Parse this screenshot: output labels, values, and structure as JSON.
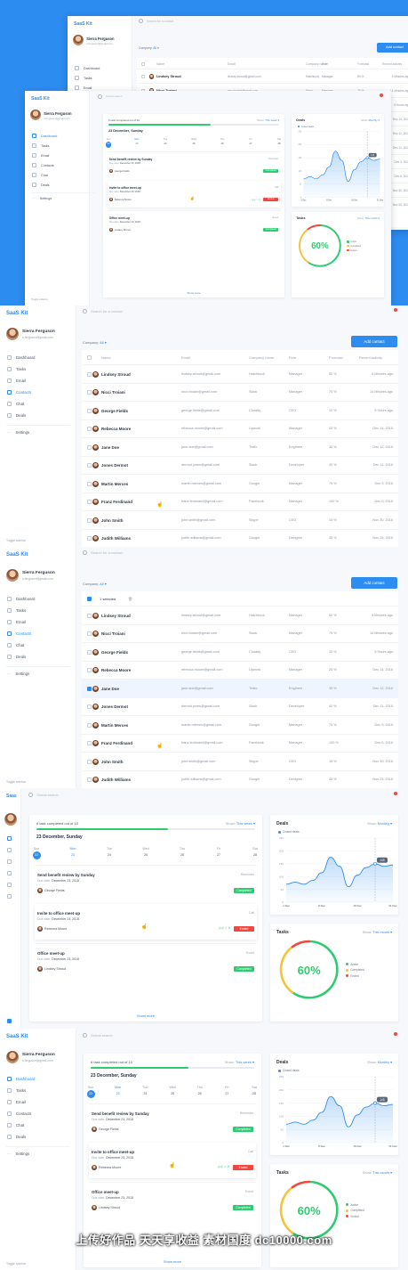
{
  "app": {
    "brand": "SaaS Kit",
    "brand_short": "Saas"
  },
  "user": {
    "name": "Sierra Ferguson",
    "email": "s.ferguson@gmail.com"
  },
  "nav": [
    "Dashboard",
    "Tasks",
    "Email",
    "Contacts",
    "Chat",
    "Deals"
  ],
  "settings_label": "Settings",
  "toggle_label": "Toggle sidebar",
  "search": {
    "contact": "Search for a contact",
    "global": "Global search"
  },
  "contacts": {
    "company_label": "Company:",
    "company_value": "All",
    "add_button": "Add contact",
    "selected_text": "1 selected",
    "headers": [
      "Name",
      "Email",
      "Company name",
      "Role",
      "Forecast",
      "Recent activity"
    ],
    "rows": [
      {
        "name": "Lindsey Stroud",
        "email": "lindsey.stroud@gmail.com",
        "company": "Hatchbuck",
        "role": "Manager",
        "forecast": "50 %",
        "activity": "5 Minutes ago"
      },
      {
        "name": "Nicci Troiani",
        "email": "nicci.troiani@gmail.com",
        "company": "Slack",
        "role": "Manager",
        "forecast": "75 %",
        "activity": "14 Minutes ago"
      },
      {
        "name": "George Fields",
        "email": "george.fields@gmail.com",
        "company": "Clockify",
        "role": "CEO",
        "forecast": "10 %",
        "activity": "5 Hours ago"
      },
      {
        "name": "Rebecca Moore",
        "email": "rebecca.moore@gmail.com",
        "company": "Upwork",
        "role": "Manager",
        "forecast": "25 %",
        "activity": "Dec 14, 2016"
      },
      {
        "name": "Jane Doe",
        "email": "jane.doe@gmail.com",
        "company": "Trello",
        "role": "Engineer",
        "forecast": "35 %",
        "activity": "Dec 12, 2016"
      },
      {
        "name": "Jones Dermot",
        "email": "dermot.jones@gmail.com",
        "company": "Slack",
        "role": "Developer",
        "forecast": "40 %",
        "activity": "Dec 11, 2016"
      },
      {
        "name": "Martin Merces",
        "email": "martin.merces@gmail.com",
        "company": "Google",
        "role": "Manager",
        "forecast": "75 %",
        "activity": "Dec 9, 2016"
      },
      {
        "name": "Franz Ferdinand",
        "email": "franz.ferdinand@gmail.com",
        "company": "Facebook",
        "role": "Manager",
        "forecast": "100 %",
        "activity": "Dec 6, 2016"
      },
      {
        "name": "John Smith",
        "email": "john.smith@gmail.com",
        "company": "Skype",
        "role": "CEO",
        "forecast": "15 %",
        "activity": "Nov 30, 2016"
      },
      {
        "name": "Judith Williams",
        "email": "judith.williams@gmail.com",
        "company": "Google",
        "role": "Designer",
        "forecast": "45 %",
        "activity": "Nov 25, 2016"
      }
    ]
  },
  "tasks_card": {
    "progress_text": "6 task completed out of 10",
    "progress": 0.6,
    "show_label": "Show:",
    "show_value": "This week",
    "date_heading": "23 December, Sunday",
    "days": [
      {
        "d": "Sun",
        "n": "22"
      },
      {
        "d": "Mon",
        "n": "23"
      },
      {
        "d": "Tue",
        "n": "24"
      },
      {
        "d": "Wed",
        "n": "25"
      },
      {
        "d": "Thu",
        "n": "26"
      },
      {
        "d": "Fri",
        "n": "27"
      },
      {
        "d": "Sat",
        "n": "28"
      }
    ],
    "tasks": [
      {
        "name": "Send benefit review by Sunday",
        "type": "Reminder",
        "due_label": "Due date:",
        "due": "December 23, 2018",
        "person": "George Fields",
        "status": "Completed"
      },
      {
        "name": "Invite to office meet-up",
        "type": "Call",
        "due_label": "Due date:",
        "due": "December 23, 2018",
        "person": "Rebecca Moore",
        "status": "Ended"
      },
      {
        "name": "Office meet-up",
        "type": "Event",
        "due_label": "Due date:",
        "due": "December 23, 2018",
        "person": "Lindsey Stroud",
        "status": "Completed"
      }
    ],
    "show_more": "Show more"
  },
  "deals": {
    "title": "Deals",
    "show_label": "Show:",
    "show_value": "Monthly",
    "legend": "Closed deals",
    "tooltip": "145",
    "chart_data": {
      "type": "area",
      "title": "Deals",
      "series": [
        {
          "name": "Closed deals",
          "x": [
            0,
            1,
            2,
            3,
            4,
            5,
            6,
            7,
            8,
            9,
            10,
            11,
            12
          ],
          "values": [
            70,
            78,
            70,
            85,
            115,
            175,
            140,
            60,
            105,
            135,
            150,
            140,
            145
          ]
        }
      ],
      "x_ticks": [
        "1 Dec",
        "8 Dec",
        "16 Dec",
        "31 Dec"
      ],
      "y_ticks": [
        "0",
        "50",
        "100",
        "150",
        "200",
        "250"
      ],
      "ylim": [
        0,
        250
      ],
      "grid": true,
      "legend": "top-left"
    }
  },
  "tasks_donut": {
    "title": "Tasks",
    "show_label": "Show:",
    "show_value": "This month",
    "percent": "60%",
    "legend": [
      {
        "label": "Active",
        "color": "#2ecc71"
      },
      {
        "label": "Completed",
        "color": "#f7c23c"
      },
      {
        "label": "Ended",
        "color": "#f0483e"
      }
    ],
    "chart_data": {
      "type": "pie",
      "slices": [
        {
          "label": "Active",
          "value": 60
        },
        {
          "label": "Completed",
          "value": 30
        },
        {
          "label": "Ended",
          "value": 10
        }
      ]
    }
  },
  "watermark": "上传好作品 天天享收益    素材国度 dc10000.com",
  "colors": {
    "accent": "#2d8cf0",
    "green": "#2ecc71",
    "red": "#f0483e",
    "yellow": "#f7c23c"
  }
}
